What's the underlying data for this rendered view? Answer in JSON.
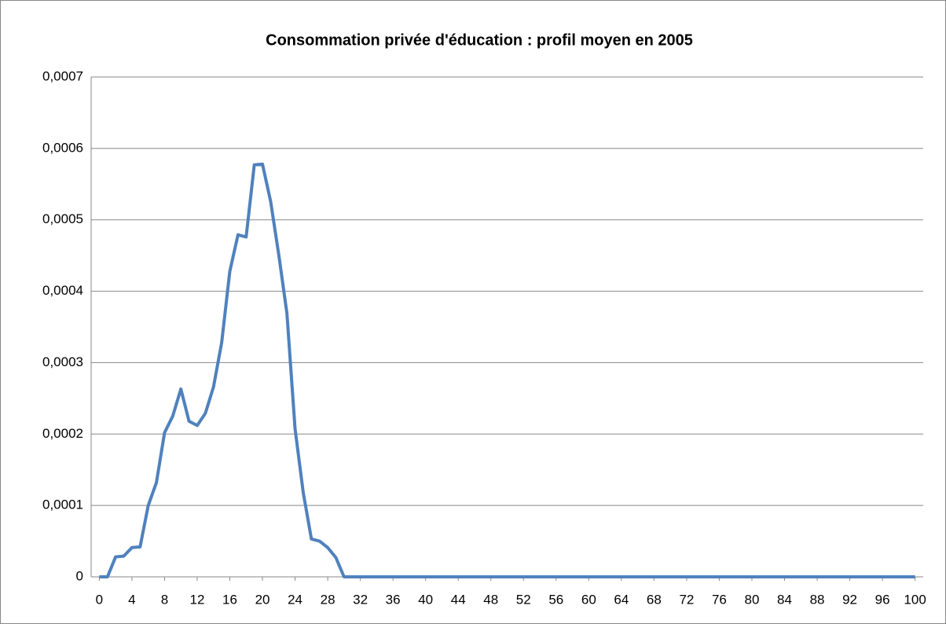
{
  "chart_data": {
    "type": "line",
    "title": "Consommation privée d'éducation : profil moyen en 2005",
    "x": [
      0,
      1,
      2,
      3,
      4,
      5,
      6,
      7,
      8,
      9,
      10,
      11,
      12,
      13,
      14,
      15,
      16,
      17,
      18,
      19,
      20,
      21,
      22,
      23,
      24,
      25,
      26,
      27,
      28,
      29,
      30,
      31,
      32,
      33,
      34,
      35,
      36,
      37,
      38,
      39,
      40,
      41,
      42,
      43,
      44,
      45,
      46,
      47,
      48,
      49,
      50,
      51,
      52,
      53,
      54,
      55,
      56,
      57,
      58,
      59,
      60,
      61,
      62,
      63,
      64,
      65,
      66,
      67,
      68,
      69,
      70,
      71,
      72,
      73,
      74,
      75,
      76,
      77,
      78,
      79,
      80,
      81,
      82,
      83,
      84,
      85,
      86,
      87,
      88,
      89,
      90,
      91,
      92,
      93,
      94,
      95,
      96,
      97,
      98,
      99,
      100
    ],
    "series": [
      {
        "name": "Consommation privée d'éducation",
        "color": "#4f81bd",
        "values": [
          0,
          0,
          2.8e-05,
          2.9e-05,
          4.1e-05,
          4.2e-05,
          0.0001,
          0.000132,
          0.000202,
          0.000225,
          0.000263,
          0.000218,
          0.000212,
          0.000229,
          0.000266,
          0.000328,
          0.000428,
          0.000479,
          0.000476,
          0.000577,
          0.000578,
          0.000526,
          0.000451,
          0.000369,
          0.000207,
          0.000118,
          5.3e-05,
          5e-05,
          4.1e-05,
          2.7e-05,
          0,
          0,
          0,
          0,
          0,
          0,
          0,
          0,
          0,
          0,
          0,
          0,
          0,
          0,
          0,
          0,
          0,
          0,
          0,
          0,
          0,
          0,
          0,
          0,
          0,
          0,
          0,
          0,
          0,
          0,
          0,
          0,
          0,
          0,
          0,
          0,
          0,
          0,
          0,
          0,
          0,
          0,
          0,
          0,
          0,
          0,
          0,
          0,
          0,
          0,
          0,
          0,
          0,
          0,
          0,
          0,
          0,
          0,
          0,
          0,
          0,
          0,
          0,
          0,
          0,
          0,
          0,
          0,
          0,
          0,
          0
        ]
      }
    ],
    "xlim": [
      -1,
      101
    ],
    "xticks": [
      0,
      4,
      8,
      12,
      16,
      20,
      24,
      28,
      32,
      36,
      40,
      44,
      48,
      52,
      56,
      60,
      64,
      68,
      72,
      76,
      80,
      84,
      88,
      92,
      96,
      100
    ],
    "ylim": [
      0,
      0.0007
    ],
    "yticks": [
      0,
      {
        "value": 0.0001,
        "label": "0,0001"
      },
      {
        "value": 0.0002,
        "label": "0,0002"
      },
      {
        "value": 0.0003,
        "label": "0,0003"
      },
      {
        "value": 0.0004,
        "label": "0,0004"
      },
      {
        "value": 0.0005,
        "label": "0,0005"
      },
      {
        "value": 0.0006,
        "label": "0,0006"
      },
      {
        "value": 0.0007,
        "label": "0,0007"
      }
    ],
    "grid": true
  }
}
